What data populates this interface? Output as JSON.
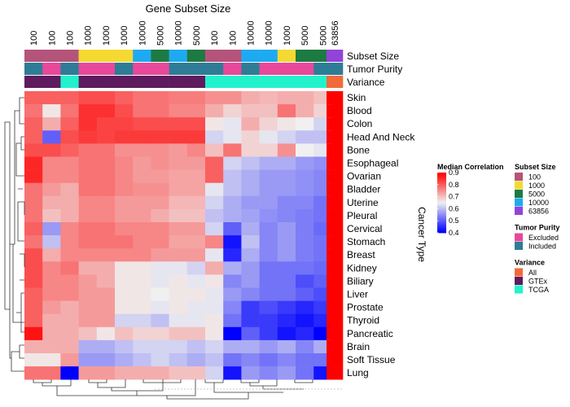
{
  "chart_data": {
    "type": "heatmap",
    "title": "Gene Subset Size",
    "ylabel": "Cancer Type",
    "column_labels": [
      "100",
      "100",
      "100",
      "1000",
      "1000",
      "1000",
      "10000",
      "5000",
      "10000",
      "5000",
      "100",
      "100",
      "10000",
      "10000",
      "1000",
      "5000",
      "5000",
      "63856"
    ],
    "row_labels": [
      "Skin",
      "Blood",
      "Colon",
      "Head And Neck",
      "Bone",
      "Esophageal",
      "Ovarian",
      "Bladder",
      "Uterine",
      "Pleural",
      "Cervical",
      "Stomach",
      "Breast",
      "Kidney",
      "Biliary",
      "Liver",
      "Prostate",
      "Thyroid",
      "Pancreatic",
      "Brain",
      "Soft Tissue",
      "Lung"
    ],
    "values": [
      [
        0.8,
        0.8,
        0.8,
        0.82,
        0.82,
        0.8,
        0.78,
        0.78,
        0.77,
        0.77,
        0.75,
        0.75,
        0.72,
        0.71,
        0.72,
        0.72,
        0.7,
        0.9
      ],
      [
        0.78,
        0.66,
        0.78,
        0.85,
        0.85,
        0.82,
        0.78,
        0.78,
        0.76,
        0.76,
        0.72,
        0.68,
        0.7,
        0.7,
        0.78,
        0.72,
        0.68,
        0.9
      ],
      [
        0.8,
        0.72,
        0.8,
        0.85,
        0.83,
        0.83,
        0.82,
        0.82,
        0.82,
        0.82,
        0.66,
        0.64,
        0.72,
        0.68,
        0.66,
        0.65,
        0.62,
        0.9
      ],
      [
        0.8,
        0.5,
        0.82,
        0.84,
        0.83,
        0.84,
        0.84,
        0.84,
        0.84,
        0.84,
        0.62,
        0.64,
        0.68,
        0.64,
        0.62,
        0.6,
        0.6,
        0.9
      ],
      [
        0.82,
        0.82,
        0.8,
        0.78,
        0.78,
        0.75,
        0.75,
        0.75,
        0.74,
        0.76,
        0.7,
        0.78,
        0.68,
        0.68,
        0.75,
        0.65,
        0.64,
        0.9
      ],
      [
        0.86,
        0.76,
        0.76,
        0.78,
        0.78,
        0.76,
        0.74,
        0.75,
        0.74,
        0.74,
        0.8,
        0.62,
        0.6,
        0.58,
        0.58,
        0.56,
        0.55,
        0.9
      ],
      [
        0.86,
        0.76,
        0.76,
        0.78,
        0.78,
        0.76,
        0.74,
        0.74,
        0.73,
        0.73,
        0.8,
        0.6,
        0.58,
        0.56,
        0.56,
        0.55,
        0.54,
        0.9
      ],
      [
        0.78,
        0.74,
        0.72,
        0.78,
        0.78,
        0.76,
        0.75,
        0.75,
        0.73,
        0.73,
        0.64,
        0.6,
        0.58,
        0.56,
        0.56,
        0.55,
        0.54,
        0.9
      ],
      [
        0.78,
        0.72,
        0.72,
        0.76,
        0.76,
        0.74,
        0.74,
        0.74,
        0.71,
        0.71,
        0.62,
        0.58,
        0.56,
        0.56,
        0.54,
        0.54,
        0.52,
        0.9
      ],
      [
        0.78,
        0.7,
        0.72,
        0.76,
        0.76,
        0.74,
        0.74,
        0.72,
        0.7,
        0.7,
        0.6,
        0.58,
        0.57,
        0.55,
        0.54,
        0.53,
        0.52,
        0.9
      ],
      [
        0.8,
        0.56,
        0.76,
        0.78,
        0.78,
        0.76,
        0.76,
        0.76,
        0.74,
        0.74,
        0.62,
        0.5,
        0.58,
        0.54,
        0.56,
        0.53,
        0.51,
        0.9
      ],
      [
        0.78,
        0.6,
        0.76,
        0.78,
        0.78,
        0.78,
        0.76,
        0.76,
        0.73,
        0.73,
        0.76,
        0.42,
        0.6,
        0.54,
        0.56,
        0.53,
        0.52,
        0.9
      ],
      [
        0.82,
        0.72,
        0.76,
        0.76,
        0.76,
        0.76,
        0.76,
        0.74,
        0.74,
        0.74,
        0.64,
        0.44,
        0.58,
        0.54,
        0.56,
        0.53,
        0.52,
        0.9
      ],
      [
        0.82,
        0.76,
        0.78,
        0.72,
        0.72,
        0.66,
        0.66,
        0.64,
        0.64,
        0.62,
        0.72,
        0.58,
        0.56,
        0.52,
        0.52,
        0.52,
        0.51,
        0.9
      ],
      [
        0.82,
        0.76,
        0.76,
        0.74,
        0.72,
        0.66,
        0.66,
        0.64,
        0.66,
        0.64,
        0.66,
        0.54,
        0.56,
        0.52,
        0.52,
        0.48,
        0.5,
        0.9
      ],
      [
        0.8,
        0.76,
        0.76,
        0.74,
        0.74,
        0.66,
        0.66,
        0.65,
        0.66,
        0.66,
        0.64,
        0.56,
        0.54,
        0.52,
        0.52,
        0.5,
        0.48,
        0.9
      ],
      [
        0.8,
        0.74,
        0.72,
        0.74,
        0.74,
        0.66,
        0.66,
        0.64,
        0.66,
        0.64,
        0.64,
        0.54,
        0.46,
        0.48,
        0.46,
        0.44,
        0.46,
        0.9
      ],
      [
        0.8,
        0.72,
        0.72,
        0.74,
        0.74,
        0.62,
        0.62,
        0.6,
        0.64,
        0.64,
        0.66,
        0.52,
        0.46,
        0.46,
        0.44,
        0.42,
        0.44,
        0.9
      ],
      [
        0.88,
        0.72,
        0.72,
        0.7,
        0.66,
        0.7,
        0.68,
        0.68,
        0.7,
        0.7,
        0.66,
        0.4,
        0.5,
        0.46,
        0.42,
        0.44,
        0.4,
        0.9
      ],
      [
        0.72,
        0.72,
        0.72,
        0.58,
        0.58,
        0.6,
        0.62,
        0.62,
        0.62,
        0.6,
        0.62,
        0.58,
        0.58,
        0.56,
        0.58,
        0.54,
        0.58,
        0.9
      ],
      [
        0.66,
        0.66,
        0.74,
        0.56,
        0.56,
        0.58,
        0.6,
        0.62,
        0.6,
        0.58,
        0.6,
        0.52,
        0.54,
        0.52,
        0.54,
        0.52,
        0.52,
        0.9
      ],
      [
        0.78,
        0.78,
        0.4,
        0.74,
        0.74,
        0.72,
        0.72,
        0.72,
        0.7,
        0.7,
        0.62,
        0.42,
        0.56,
        0.54,
        0.56,
        0.52,
        0.42,
        0.9
      ]
    ],
    "annotations": [
      {
        "name": "Subset Size",
        "values": [
          "100",
          "100",
          "100",
          "1000",
          "1000",
          "1000",
          "10000",
          "5000",
          "10000",
          "5000",
          "100",
          "100",
          "10000",
          "10000",
          "1000",
          "5000",
          "5000",
          "63856"
        ]
      },
      {
        "name": "Tumor Purity",
        "values": [
          "Included",
          "Excluded",
          "Included",
          "Excluded",
          "Excluded",
          "Included",
          "Excluded",
          "Excluded",
          "Included",
          "Included",
          "Included",
          "Excluded",
          "Included",
          "Excluded",
          "Excluded",
          "Excluded",
          "Included",
          "Included"
        ]
      },
      {
        "name": "Variance",
        "values": [
          "GTEx",
          "GTEx",
          "TCGA",
          "GTEx",
          "GTEx",
          "GTEx",
          "GTEx",
          "GTEx",
          "GTEx",
          "GTEx",
          "TCGA",
          "TCGA",
          "TCGA",
          "TCGA",
          "TCGA",
          "TCGA",
          "TCGA",
          "All"
        ]
      }
    ],
    "color_scale": {
      "title": "Median Correlation",
      "min": 0.4,
      "mid": 0.65,
      "max": 0.9,
      "low_color": "#0000ff",
      "mid_color": "#f0f0f0",
      "high_color": "#ff0000",
      "ticks": [
        "0.9",
        "0.8",
        "0.7",
        "0.6",
        "0.5",
        "0.4"
      ]
    },
    "legends": [
      {
        "title": "Subset Size",
        "entries": [
          {
            "label": "100",
            "color": "#b5547a"
          },
          {
            "label": "1000",
            "color": "#f5d933"
          },
          {
            "label": "5000",
            "color": "#1e7a43"
          },
          {
            "label": "10000",
            "color": "#1eaaf0"
          },
          {
            "label": "63856",
            "color": "#9244d8"
          }
        ]
      },
      {
        "title": "Tumor Purity",
        "entries": [
          {
            "label": "Excluded",
            "color": "#e8489a"
          },
          {
            "label": "Included",
            "color": "#2e7c96"
          }
        ]
      },
      {
        "title": "Variance",
        "entries": [
          {
            "label": "All",
            "color": "#f26a3a"
          },
          {
            "label": "GTEx",
            "color": "#5e1b5e"
          },
          {
            "label": "TCGA",
            "color": "#22f2cc"
          }
        ]
      }
    ],
    "grid": false,
    "legend_placement": "right"
  }
}
